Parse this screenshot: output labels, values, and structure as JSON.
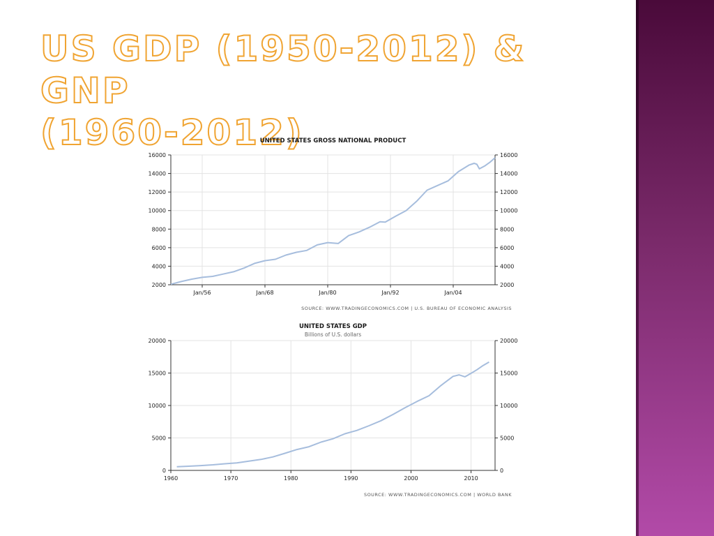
{
  "slide": {
    "title_line1": "US GDP (1950-2012) & GNP",
    "title_line2": "(1960-2012)"
  },
  "chart_data": [
    {
      "type": "line",
      "title": "UNITED STATES GROSS NATIONAL PRODUCT",
      "subtitle": "",
      "source": "SOURCE: WWW.TRADINGECONOMICS.COM | U.S. BUREAU OF ECONOMIC ANALYSIS",
      "xlabel": "",
      "ylabel": "",
      "ylim": [
        2000,
        16000
      ],
      "xlim": [
        1950,
        2012
      ],
      "y_ticks": [
        2000,
        4000,
        6000,
        8000,
        10000,
        12000,
        14000,
        16000
      ],
      "x_ticks": [
        {
          "value": 1956,
          "label": "Jan/56"
        },
        {
          "value": 1968,
          "label": "Jan/68"
        },
        {
          "value": 1980,
          "label": "Jan/80"
        },
        {
          "value": 1992,
          "label": "Jan/92"
        },
        {
          "value": 2004,
          "label": "Jan/04"
        }
      ],
      "grid": true,
      "colors": {
        "series": "#a6bddd"
      },
      "series": [
        {
          "name": "",
          "x": [
            1950,
            1952,
            1954,
            1956,
            1958,
            1960,
            1962,
            1964,
            1966,
            1968,
            1970,
            1972,
            1974,
            1976,
            1978,
            1980,
            1981,
            1982,
            1984,
            1986,
            1988,
            1990,
            1991,
            1993,
            1995,
            1997,
            1999,
            2001,
            2003,
            2005,
            2007,
            2008,
            2008.5,
            2009,
            2010,
            2011,
            2012
          ],
          "y": [
            2050,
            2350,
            2600,
            2800,
            2900,
            3150,
            3400,
            3800,
            4300,
            4600,
            4750,
            5200,
            5500,
            5700,
            6300,
            6550,
            6500,
            6450,
            7300,
            7700,
            8200,
            8800,
            8750,
            9400,
            10000,
            11000,
            12200,
            12700,
            13200,
            14200,
            14900,
            15100,
            15000,
            14500,
            14800,
            15200,
            15700
          ]
        }
      ]
    },
    {
      "type": "line",
      "title": "UNITED STATES GDP",
      "subtitle": "Billions of U.S. dollars",
      "source": "SOURCE: WWW.TRADINGECONOMICS.COM | WORLD BANK",
      "xlabel": "",
      "ylabel": "",
      "ylim": [
        0,
        20000
      ],
      "xlim": [
        1960,
        2014
      ],
      "y_ticks": [
        0,
        5000,
        10000,
        15000,
        20000
      ],
      "x_ticks": [
        {
          "value": 1960,
          "label": "1960"
        },
        {
          "value": 1970,
          "label": "1970"
        },
        {
          "value": 1980,
          "label": "1980"
        },
        {
          "value": 1990,
          "label": "1990"
        },
        {
          "value": 2000,
          "label": "2000"
        },
        {
          "value": 2010,
          "label": "2010"
        }
      ],
      "grid": true,
      "colors": {
        "series": "#a6bddd"
      },
      "series": [
        {
          "name": "",
          "x": [
            1961,
            1963,
            1965,
            1967,
            1969,
            1971,
            1973,
            1975,
            1977,
            1979,
            1981,
            1983,
            1985,
            1987,
            1989,
            1991,
            1993,
            1995,
            1997,
            1999,
            2001,
            2003,
            2005,
            2007,
            2008,
            2009,
            2010,
            2011,
            2012,
            2013
          ],
          "y": [
            560,
            640,
            740,
            860,
            1020,
            1160,
            1420,
            1690,
            2080,
            2630,
            3210,
            3640,
            4350,
            4870,
            5640,
            6160,
            6880,
            7660,
            8610,
            9660,
            10620,
            11510,
            13090,
            14480,
            14720,
            14420,
            14960,
            15520,
            16160,
            16690
          ]
        }
      ]
    }
  ]
}
